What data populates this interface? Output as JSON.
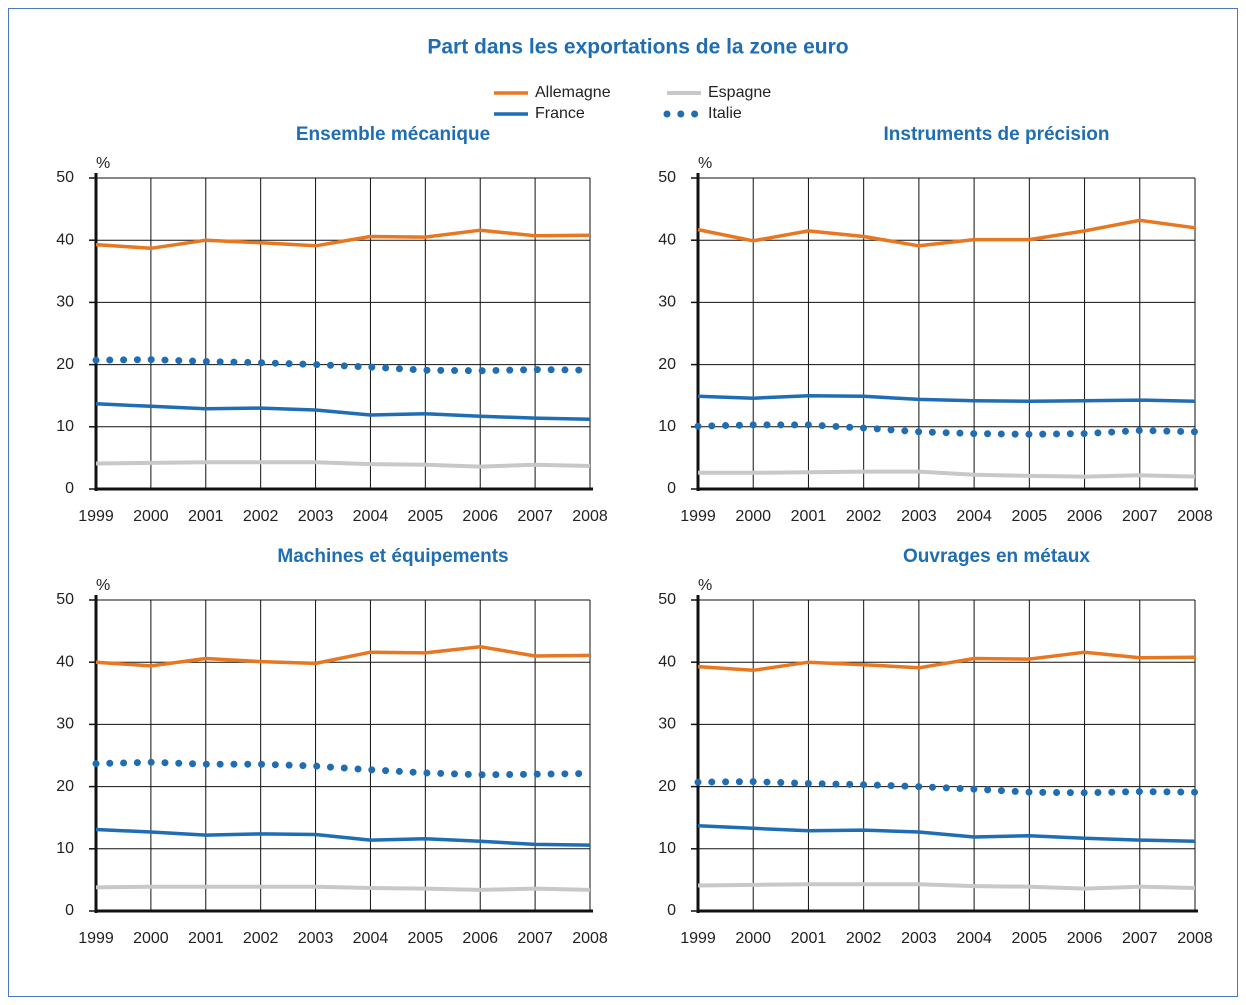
{
  "title": "Part dans les exportations de la zone euro",
  "chart_data": [
    {
      "type": "line",
      "title": "Ensemble mécanique",
      "y_label": "%",
      "x": [
        1999,
        2000,
        2001,
        2002,
        2003,
        2004,
        2005,
        2006,
        2007,
        2008
      ],
      "xlim": [
        1999,
        2008
      ],
      "xticks": [
        1999,
        2000,
        2001,
        2002,
        2003,
        2004,
        2005,
        2006,
        2007,
        2008
      ],
      "ylim": [
        0,
        50
      ],
      "yticks": [
        0,
        10,
        20,
        30,
        40,
        50
      ],
      "grid": true,
      "series": [
        {
          "name": "Allemagne",
          "color": "#e87722",
          "style": "solid",
          "values": [
            39.3,
            38.7,
            40.0,
            39.6,
            39.1,
            40.6,
            40.5,
            41.6,
            40.7,
            40.8
          ]
        },
        {
          "name": "France",
          "color": "#1f6db3",
          "style": "solid",
          "values": [
            13.7,
            13.3,
            12.9,
            13.0,
            12.7,
            11.9,
            12.1,
            11.7,
            11.4,
            11.2
          ]
        },
        {
          "name": "Espagne",
          "color": "#c8c8c8",
          "style": "solid",
          "values": [
            4.1,
            4.2,
            4.3,
            4.3,
            4.3,
            4.0,
            3.9,
            3.6,
            3.9,
            3.7
          ]
        },
        {
          "name": "Italie",
          "color": "#1f6db3",
          "style": "dotted",
          "values": [
            20.7,
            20.8,
            20.5,
            20.3,
            20.0,
            19.6,
            19.1,
            19.0,
            19.2,
            19.1
          ]
        }
      ]
    },
    {
      "type": "line",
      "title": "Instruments de précision",
      "y_label": "%",
      "x": [
        1999,
        2000,
        2001,
        2002,
        2003,
        2004,
        2005,
        2006,
        2007,
        2008
      ],
      "xlim": [
        1999,
        2008
      ],
      "xticks": [
        1999,
        2000,
        2001,
        2002,
        2003,
        2004,
        2005,
        2006,
        2007,
        2008
      ],
      "ylim": [
        0,
        50
      ],
      "yticks": [
        0,
        10,
        20,
        30,
        40,
        50
      ],
      "grid": true,
      "series": [
        {
          "name": "Allemagne",
          "color": "#e87722",
          "style": "solid",
          "values": [
            41.7,
            39.9,
            41.5,
            40.6,
            39.1,
            40.1,
            40.1,
            41.5,
            43.2,
            42.0
          ]
        },
        {
          "name": "France",
          "color": "#1f6db3",
          "style": "solid",
          "values": [
            14.9,
            14.6,
            15.0,
            14.9,
            14.4,
            14.2,
            14.1,
            14.2,
            14.3,
            14.1
          ]
        },
        {
          "name": "Espagne",
          "color": "#c8c8c8",
          "style": "solid",
          "values": [
            2.6,
            2.6,
            2.7,
            2.8,
            2.8,
            2.3,
            2.1,
            2.0,
            2.2,
            2.0
          ]
        },
        {
          "name": "Italie",
          "color": "#1f6db3",
          "style": "dotted",
          "values": [
            10.1,
            10.3,
            10.3,
            9.8,
            9.2,
            8.9,
            8.8,
            8.9,
            9.4,
            9.2
          ]
        }
      ]
    },
    {
      "type": "line",
      "title": "Machines et équipements",
      "y_label": "%",
      "x": [
        1999,
        2000,
        2001,
        2002,
        2003,
        2004,
        2005,
        2006,
        2007,
        2008
      ],
      "xlim": [
        1999,
        2008
      ],
      "xticks": [
        1999,
        2000,
        2001,
        2002,
        2003,
        2004,
        2005,
        2006,
        2007,
        2008
      ],
      "ylim": [
        0,
        50
      ],
      "yticks": [
        0,
        10,
        20,
        30,
        40,
        50
      ],
      "grid": true,
      "series": [
        {
          "name": "Allemagne",
          "color": "#e87722",
          "style": "solid",
          "values": [
            40.0,
            39.4,
            40.6,
            40.1,
            39.8,
            41.6,
            41.5,
            42.5,
            41.0,
            41.1
          ]
        },
        {
          "name": "France",
          "color": "#1f6db3",
          "style": "solid",
          "values": [
            13.1,
            12.7,
            12.2,
            12.4,
            12.3,
            11.4,
            11.6,
            11.2,
            10.7,
            10.6
          ]
        },
        {
          "name": "Espagne",
          "color": "#c8c8c8",
          "style": "solid",
          "values": [
            3.8,
            3.9,
            3.9,
            3.9,
            3.9,
            3.7,
            3.6,
            3.4,
            3.6,
            3.4
          ]
        },
        {
          "name": "Italie",
          "color": "#1f6db3",
          "style": "dotted",
          "values": [
            23.7,
            23.9,
            23.6,
            23.6,
            23.3,
            22.7,
            22.2,
            21.9,
            22.0,
            22.1
          ]
        }
      ]
    },
    {
      "type": "line",
      "title": "Ouvrages en métaux",
      "y_label": "%",
      "x": [
        1999,
        2000,
        2001,
        2002,
        2003,
        2004,
        2005,
        2006,
        2007,
        2008
      ],
      "xlim": [
        1999,
        2008
      ],
      "xticks": [
        1999,
        2000,
        2001,
        2002,
        2003,
        2004,
        2005,
        2006,
        2007,
        2008
      ],
      "ylim": [
        0,
        50
      ],
      "yticks": [
        0,
        10,
        20,
        30,
        40,
        50
      ],
      "grid": true,
      "series": [
        {
          "name": "Allemagne",
          "color": "#e87722",
          "style": "solid",
          "values": [
            39.3,
            38.7,
            40.0,
            39.6,
            39.1,
            40.6,
            40.5,
            41.6,
            40.7,
            40.8
          ]
        },
        {
          "name": "France",
          "color": "#1f6db3",
          "style": "solid",
          "values": [
            13.7,
            13.3,
            12.9,
            13.0,
            12.7,
            11.9,
            12.1,
            11.7,
            11.4,
            11.2
          ]
        },
        {
          "name": "Espagne",
          "color": "#c8c8c8",
          "style": "solid",
          "values": [
            4.1,
            4.2,
            4.3,
            4.3,
            4.3,
            4.0,
            3.9,
            3.6,
            3.9,
            3.7
          ]
        },
        {
          "name": "Italie",
          "color": "#1f6db3",
          "style": "dotted",
          "values": [
            20.7,
            20.8,
            20.5,
            20.3,
            20.0,
            19.6,
            19.1,
            19.0,
            19.2,
            19.1
          ]
        }
      ]
    }
  ]
}
